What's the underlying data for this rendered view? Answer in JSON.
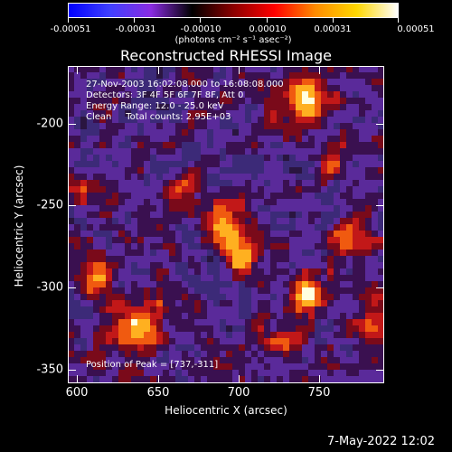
{
  "colorbar": {
    "tick_labels": [
      "-0.00051",
      "-0.00031",
      "-0.00010",
      "0.00010",
      "0.00031",
      "0.00051"
    ],
    "unit_label": "(photons cm⁻² s⁻¹ asec⁻²)"
  },
  "title": "Reconstructed RHESSI Image",
  "info": {
    "time_range": "27-Nov-2003 16:02:08.000 to 16:08:08.000",
    "detectors": "Detectors: 3F 4F 5F 6F 7F 8F, Att 0",
    "energy_range": "Energy Range: 12.0 - 25.0 keV",
    "method_counts": "Clean     Total counts: 2.95E+03",
    "peak_position": "Position of Peak = [737,-311]"
  },
  "axes": {
    "x_label": "Heliocentric X (arcsec)",
    "y_label": "Heliocentric Y (arcsec)",
    "x_ticks": [
      "600",
      "650",
      "700",
      "750"
    ],
    "y_ticks": [
      "-200",
      "-250",
      "-300",
      "-350"
    ]
  },
  "footer": "7-May-2022 12:02",
  "colors": {
    "colorbar_gradient": [
      "#0000ff",
      "#4040ff",
      "#8a2be2",
      "#000000",
      "#8b0000",
      "#ff0000",
      "#ff8c00",
      "#ffd700",
      "#ffffff"
    ],
    "background": "#000000",
    "image_palette": [
      "#2a1540",
      "#3c2a78",
      "#5a2a9a",
      "#3a1050",
      "#7a0a1a",
      "#c21818",
      "#f05a10",
      "#ffb020",
      "#ffffe0"
    ]
  }
}
